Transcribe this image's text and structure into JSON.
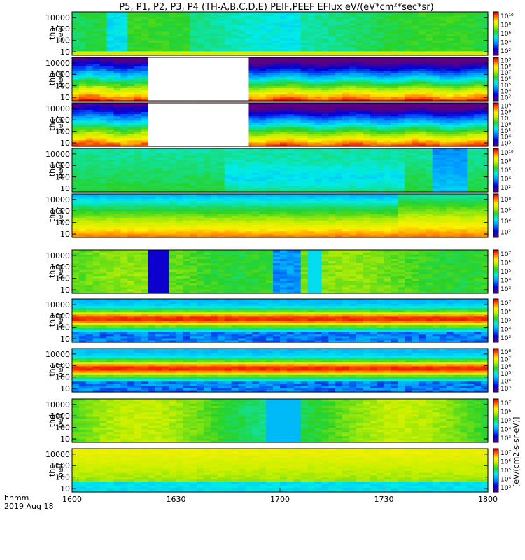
{
  "title": "P5, P1, P2, P3, P4 (TH-A,B,C,D,E) PEIF,PEEF EFlux eV/(eV*cm²*sec*sr)",
  "colorbar_label": "[eV/(cm2-s-sr-eV)]",
  "chart_data": {
    "type": "heatmap",
    "x_ticks": [
      "1600",
      "1630",
      "1700",
      "1730",
      "1800"
    ],
    "x_label_lines": [
      "hhmm",
      "2019 Aug 18"
    ],
    "y_scale": "log",
    "y_ticks": [
      "10",
      "100",
      "1000",
      "10000"
    ],
    "panels": [
      {
        "id": "tha-peef",
        "probe": "tha",
        "product": "peef",
        "cbar_ticks": [
          "10²",
          "10⁴",
          "10⁶",
          "10⁸",
          "10¹⁰"
        ],
        "gap": null
      },
      {
        "id": "thb-peef",
        "probe": "thb",
        "product": "peef",
        "cbar_ticks": [
          "10³",
          "10⁴",
          "10⁵",
          "10⁶",
          "10⁷",
          "10⁸",
          "10⁹"
        ],
        "gap": [
          "1622",
          "1651"
        ]
      },
      {
        "id": "thc-peef",
        "probe": "thc",
        "product": "peef",
        "cbar_ticks": [
          "10³",
          "10⁴",
          "10⁵",
          "10⁶",
          "10⁷",
          "10⁸",
          "10⁹"
        ],
        "gap": [
          "1622",
          "1651"
        ]
      },
      {
        "id": "thd-peef",
        "probe": "thd",
        "product": "peef",
        "cbar_ticks": [
          "10²",
          "10⁴",
          "10⁶",
          "10⁸",
          "10¹⁰"
        ],
        "gap": null
      },
      {
        "id": "the-peef",
        "probe": "the",
        "product": "peef",
        "cbar_ticks": [
          "10²",
          "10⁴",
          "10⁶",
          "10⁸"
        ],
        "gap": null
      },
      {
        "id": "tha-peif",
        "probe": "tha",
        "product": "peif",
        "cbar_ticks": [
          "10³",
          "10⁴",
          "10⁵",
          "10⁶",
          "10⁷"
        ],
        "gap": null
      },
      {
        "id": "thb-peif",
        "probe": "thb",
        "product": "peif",
        "cbar_ticks": [
          "10³",
          "10⁴",
          "10⁵",
          "10⁶",
          "10⁷"
        ],
        "gap": null
      },
      {
        "id": "thc-peif",
        "probe": "thc",
        "product": "peif",
        "cbar_ticks": [
          "10³",
          "10⁴",
          "10⁵",
          "10⁶",
          "10⁷",
          "10⁸"
        ],
        "gap": null
      },
      {
        "id": "thd-peif",
        "probe": "thd",
        "product": "peif",
        "cbar_ticks": [
          "10³",
          "10⁴",
          "10⁵",
          "10⁶",
          "10⁷"
        ],
        "gap": null
      },
      {
        "id": "the-peif",
        "probe": "the",
        "product": "peif",
        "cbar_ticks": [
          "10³",
          "10⁴",
          "10⁵",
          "10⁶",
          "10⁷"
        ],
        "gap": null
      }
    ],
    "x_range": [
      "1600",
      "1800"
    ],
    "y_range_eV": [
      5,
      30000
    ],
    "colormap": "rainbow (purple-blue-cyan-green-yellow-red)",
    "grid": false
  },
  "colors": {
    "background": "#ffffff",
    "frame": "#000000",
    "gap_fill": "#ffffff"
  }
}
